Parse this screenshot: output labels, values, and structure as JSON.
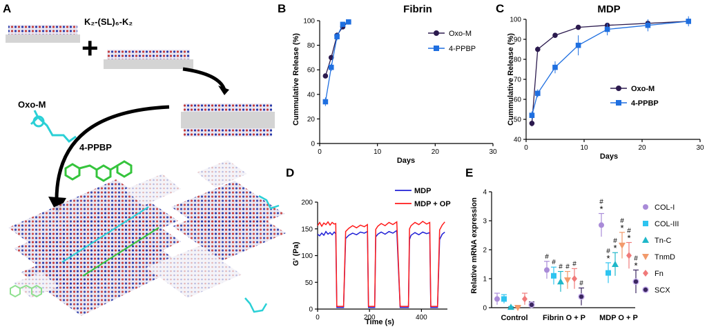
{
  "panels": {
    "A": {
      "label": "A",
      "peptide": "K₂-(SL)₆-K₂",
      "molecule_1": "Oxo-M",
      "molecule_2": "4-PPBP"
    }
  },
  "colors": {
    "oxo_m": "#2b1a4e",
    "ppbp": "#1f6fe0",
    "mdp_line": "#1f1fd6",
    "mdp_op_line": "#ff1a1a",
    "col1": "#a98bd8",
    "col3": "#2ec4f0",
    "tnc": "#1fb7c9",
    "tnmd": "#f29a6b",
    "fn": "#f07a7a",
    "scx": "#3a2660"
  },
  "chart_data": [
    {
      "id": "B",
      "panel_label": "B",
      "type": "line",
      "title": "Fibrin",
      "xlabel": "Days",
      "ylabel": "Cummulative Release (%)",
      "xlim": [
        0,
        30
      ],
      "ylim": [
        0,
        100
      ],
      "xticks": [
        "0",
        "10",
        "20",
        "30"
      ],
      "yticks": [
        "0",
        "20",
        "40",
        "60",
        "80",
        "100"
      ],
      "series": [
        {
          "name": "Oxo-M",
          "x": [
            1,
            2,
            3,
            4,
            5
          ],
          "y": [
            55,
            70,
            88,
            95,
            99
          ],
          "err": [
            1.5,
            2,
            2.5,
            2,
            1.5
          ]
        },
        {
          "name": "4-PPBP",
          "x": [
            1,
            2,
            3,
            4,
            5
          ],
          "y": [
            34,
            62,
            87,
            97,
            99
          ],
          "err": [
            3.5,
            3,
            3,
            2,
            1.5
          ]
        }
      ]
    },
    {
      "id": "C",
      "panel_label": "C",
      "type": "line",
      "title": "MDP",
      "xlabel": "Days",
      "ylabel": "Cummulative Release (%)",
      "xlim": [
        0,
        30
      ],
      "ylim": [
        40,
        100
      ],
      "xticks": [
        "0",
        "10",
        "20",
        "30"
      ],
      "yticks": [
        "40",
        "50",
        "60",
        "70",
        "80",
        "90",
        "100"
      ],
      "series": [
        {
          "name": "Oxo-M",
          "x": [
            1,
            2,
            5,
            9,
            14,
            21,
            28
          ],
          "y": [
            48,
            85,
            92,
            96,
            97,
            98,
            99
          ],
          "err": [
            1.5,
            1.5,
            1,
            1,
            1,
            1,
            1
          ]
        },
        {
          "name": "4-PPBP",
          "x": [
            1,
            2,
            5,
            9,
            14,
            21,
            28
          ],
          "y": [
            52,
            63,
            76,
            87,
            95,
            97,
            99
          ],
          "err": [
            2,
            2,
            3,
            5,
            3,
            3,
            2.5
          ]
        }
      ]
    },
    {
      "id": "D",
      "panel_label": "D",
      "type": "line",
      "xlabel": "Time (s)",
      "ylabel": "G' (Pa)",
      "xlim": [
        0,
        500
      ],
      "ylim": [
        0,
        200
      ],
      "xticks": [
        "0",
        "200",
        "400"
      ],
      "yticks": [
        "0",
        "50",
        "100",
        "150",
        "200"
      ],
      "series": [
        {
          "name": "MDP",
          "x": [
            0,
            8,
            16,
            24,
            32,
            40,
            48,
            56,
            64,
            70,
            74,
            78,
            85,
            92,
            100,
            108,
            120,
            135,
            150,
            165,
            180,
            192,
            196,
            200,
            208,
            215,
            220,
            224,
            232,
            245,
            260,
            275,
            290,
            305,
            318,
            322,
            326,
            334,
            342,
            350,
            354,
            360,
            375,
            390,
            405,
            420,
            432,
            436,
            440,
            448,
            455,
            462,
            470,
            480,
            490
          ],
          "y": [
            140,
            137,
            142,
            138,
            145,
            140,
            143,
            139,
            144,
            141,
            3,
            3,
            3,
            3,
            3,
            132,
            138,
            142,
            139,
            144,
            142,
            145,
            3,
            3,
            3,
            3,
            3,
            135,
            140,
            144,
            140,
            145,
            142,
            147,
            3,
            3,
            3,
            3,
            3,
            3,
            130,
            138,
            143,
            139,
            144,
            141,
            143,
            3,
            3,
            3,
            3,
            3,
            130,
            140,
            144
          ]
        },
        {
          "name": "MDP + OP",
          "x": [
            0,
            8,
            16,
            24,
            32,
            40,
            48,
            56,
            64,
            70,
            74,
            78,
            85,
            92,
            100,
            108,
            120,
            135,
            150,
            165,
            180,
            192,
            196,
            200,
            208,
            215,
            220,
            224,
            232,
            245,
            260,
            275,
            290,
            305,
            318,
            322,
            326,
            334,
            342,
            350,
            354,
            360,
            375,
            390,
            405,
            420,
            432,
            436,
            440,
            448,
            455,
            462,
            470,
            480,
            490
          ],
          "y": [
            156,
            162,
            155,
            161,
            158,
            163,
            157,
            162,
            159,
            160,
            5,
            5,
            5,
            5,
            5,
            145,
            151,
            156,
            152,
            157,
            154,
            158,
            5,
            5,
            5,
            5,
            5,
            149,
            155,
            160,
            156,
            162,
            158,
            163,
            5,
            5,
            5,
            5,
            5,
            5,
            150,
            156,
            162,
            158,
            164,
            159,
            162,
            5,
            5,
            5,
            5,
            5,
            148,
            157,
            163
          ]
        }
      ]
    },
    {
      "id": "E",
      "panel_label": "E",
      "type": "scatter",
      "ylabel": "Relative mRNA expression",
      "ylim": [
        0,
        4
      ],
      "yticks": [
        "0",
        "1",
        "2",
        "3",
        "4"
      ],
      "categories": [
        "Control",
        "Fibrin O + P",
        "MDP O + P"
      ],
      "series": [
        {
          "name": "COL-I",
          "values": [
            0.3,
            1.3,
            2.85
          ],
          "err": [
            0.2,
            0.3,
            0.4
          ],
          "marks": [
            "",
            "#",
            "#*"
          ]
        },
        {
          "name": "COL-III",
          "values": [
            0.3,
            1.1,
            1.2
          ],
          "err": [
            0.15,
            0.3,
            0.35
          ],
          "marks": [
            "",
            "#",
            "#*"
          ]
        },
        {
          "name": "Tn-C",
          "values": [
            0.02,
            0.9,
            1.5
          ],
          "err": [
            0.02,
            0.35,
            0.4
          ],
          "marks": [
            "",
            "#",
            "#*"
          ]
        },
        {
          "name": "TnmD",
          "values": [
            0.0,
            0.95,
            2.15
          ],
          "err": [
            0.02,
            0.3,
            0.45
          ],
          "marks": [
            "",
            "#",
            "#*"
          ]
        },
        {
          "name": "Fn",
          "values": [
            0.3,
            1.0,
            1.8
          ],
          "err": [
            0.2,
            0.35,
            0.45
          ],
          "marks": [
            "",
            "#",
            "#*"
          ]
        },
        {
          "name": "SCX",
          "values": [
            0.1,
            0.38,
            0.9
          ],
          "err": [
            0.1,
            0.3,
            0.4
          ],
          "marks": [
            "",
            "#",
            "#*"
          ]
        }
      ]
    }
  ]
}
